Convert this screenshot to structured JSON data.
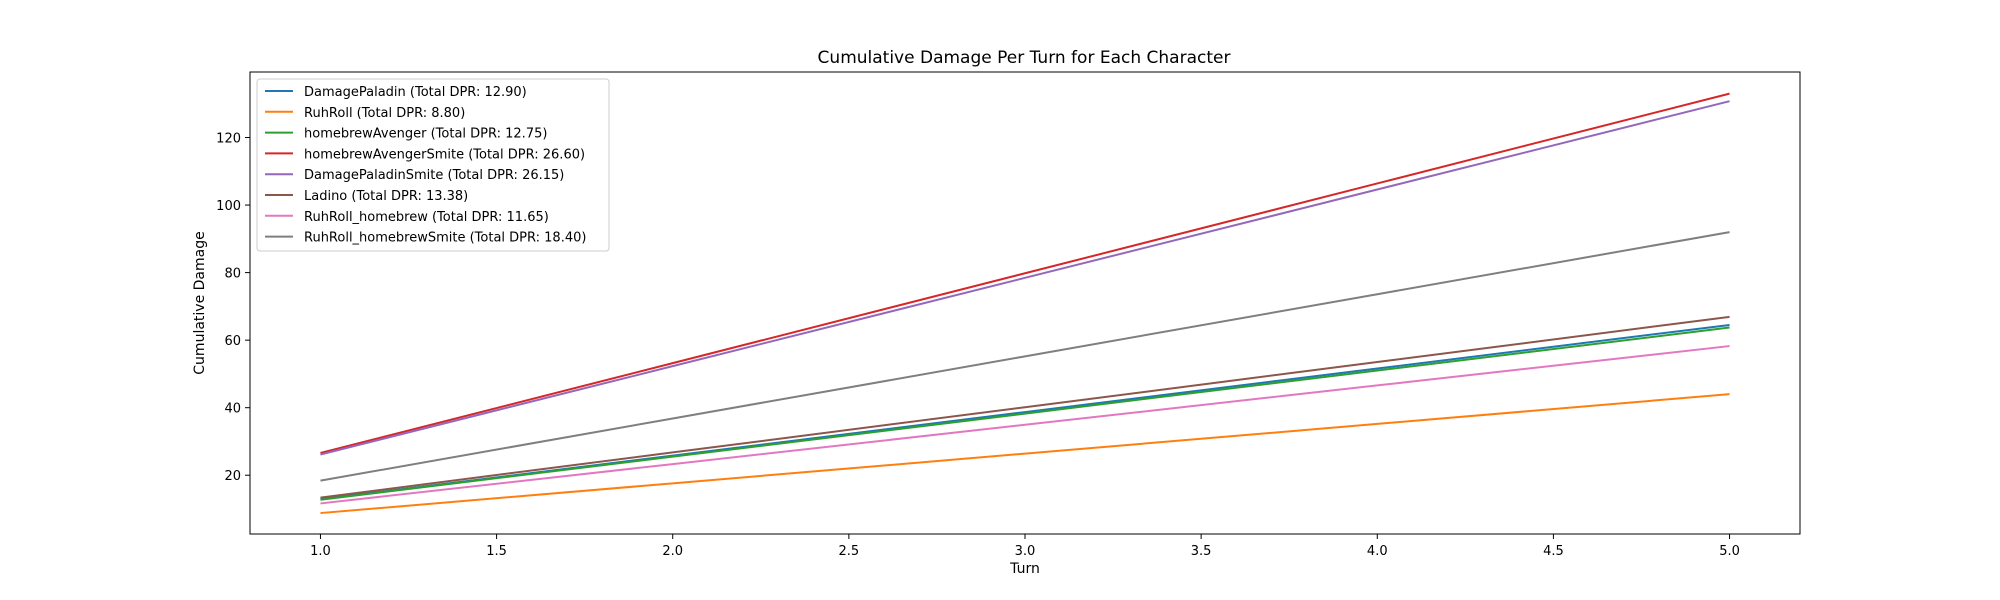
{
  "chart_data": {
    "type": "line",
    "title": "Cumulative Damage Per Turn for Each Character",
    "xlabel": "Turn",
    "ylabel": "Cumulative Damage",
    "x": [
      1,
      2,
      3,
      4,
      5
    ],
    "xlim": [
      0.8,
      5.2
    ],
    "ylim": [
      2.6,
      139.4
    ],
    "xticks": [
      1.0,
      1.5,
      2.0,
      2.5,
      3.0,
      3.5,
      4.0,
      4.5,
      5.0
    ],
    "yticks": [
      20,
      40,
      60,
      80,
      100,
      120
    ],
    "xtick_labels": [
      "1.0",
      "1.5",
      "2.0",
      "2.5",
      "3.0",
      "3.5",
      "4.0",
      "4.5",
      "5.0"
    ],
    "ytick_labels": [
      "20",
      "40",
      "60",
      "80",
      "100",
      "120"
    ],
    "grid": false,
    "legend_position": "top-left",
    "series": [
      {
        "name": "DamagePaladin (Total DPR: 12.90)",
        "color": "#1f77b4",
        "values": [
          12.9,
          25.8,
          38.7,
          51.6,
          64.5
        ]
      },
      {
        "name": "RuhRoll (Total DPR: 8.80)",
        "color": "#ff7f0e",
        "values": [
          8.8,
          17.6,
          26.4,
          35.2,
          44.0
        ]
      },
      {
        "name": "homebrewAvenger (Total DPR: 12.75)",
        "color": "#2ca02c",
        "values": [
          12.75,
          25.5,
          38.25,
          51.0,
          63.75
        ]
      },
      {
        "name": "homebrewAvengerSmite (Total DPR: 26.60)",
        "color": "#d62728",
        "values": [
          26.6,
          53.2,
          79.8,
          106.4,
          133.0
        ]
      },
      {
        "name": "DamagePaladinSmite (Total DPR: 26.15)",
        "color": "#9467bd",
        "values": [
          26.15,
          52.3,
          78.45,
          104.6,
          130.75
        ]
      },
      {
        "name": "Ladino (Total DPR: 13.38)",
        "color": "#8c564b",
        "values": [
          13.38,
          26.76,
          40.14,
          53.52,
          66.9
        ]
      },
      {
        "name": "RuhRoll_homebrew (Total DPR: 11.65)",
        "color": "#e377c2",
        "values": [
          11.65,
          23.3,
          34.95,
          46.6,
          58.25
        ]
      },
      {
        "name": "RuhRoll_homebrewSmite (Total DPR: 18.40)",
        "color": "#7f7f7f",
        "values": [
          18.4,
          36.8,
          55.2,
          73.6,
          92.0
        ]
      }
    ]
  }
}
